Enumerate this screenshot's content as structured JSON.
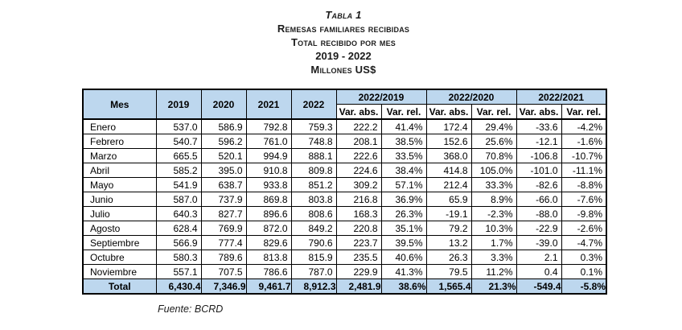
{
  "title": {
    "table_label": "Tabla 1",
    "subtitle1": "Remesas familiares recibidas",
    "subtitle2": "Total recibido por mes",
    "period": "2019 - 2022",
    "units": "Millones US$"
  },
  "colors": {
    "header_fill": "#BDD7EE",
    "border": "#000000"
  },
  "table": {
    "mes_header": "Mes",
    "year_headers": [
      "2019",
      "2020",
      "2021",
      "2022"
    ],
    "comparison_groups": [
      {
        "label": "2022/2019",
        "sub_headers": [
          "Var. abs.",
          "Var. rel."
        ]
      },
      {
        "label": "2022/2020",
        "sub_headers": [
          "Var. abs.",
          "Var. rel."
        ]
      },
      {
        "label": "2022/2021",
        "sub_headers": [
          "Var. abs.",
          "Var. rel."
        ]
      }
    ],
    "rows": [
      {
        "mes": "Enero",
        "values": [
          "537.0",
          "586.9",
          "792.8",
          "759.3",
          "222.2",
          "41.4%",
          "172.4",
          "29.4%",
          "-33.6",
          "-4.2%"
        ]
      },
      {
        "mes": "Febrero",
        "values": [
          "540.7",
          "596.2",
          "761.0",
          "748.8",
          "208.1",
          "38.5%",
          "152.6",
          "25.6%",
          "-12.1",
          "-1.6%"
        ]
      },
      {
        "mes": "Marzo",
        "values": [
          "665.5",
          "520.1",
          "994.9",
          "888.1",
          "222.6",
          "33.5%",
          "368.0",
          "70.8%",
          "-106.8",
          "-10.7%"
        ]
      },
      {
        "mes": "Abril",
        "values": [
          "585.2",
          "395.0",
          "910.8",
          "809.8",
          "224.6",
          "38.4%",
          "414.8",
          "105.0%",
          "-101.0",
          "-11.1%"
        ]
      },
      {
        "mes": "Mayo",
        "values": [
          "541.9",
          "638.7",
          "933.8",
          "851.2",
          "309.2",
          "57.1%",
          "212.4",
          "33.3%",
          "-82.6",
          "-8.8%"
        ]
      },
      {
        "mes": "Junio",
        "values": [
          "587.0",
          "737.9",
          "869.8",
          "803.8",
          "216.8",
          "36.9%",
          "65.9",
          "8.9%",
          "-66.0",
          "-7.6%"
        ]
      },
      {
        "mes": "Julio",
        "values": [
          "640.3",
          "827.7",
          "896.6",
          "808.6",
          "168.3",
          "26.3%",
          "-19.1",
          "-2.3%",
          "-88.0",
          "-9.8%"
        ]
      },
      {
        "mes": "Agosto",
        "values": [
          "628.4",
          "769.9",
          "872.0",
          "849.2",
          "220.8",
          "35.1%",
          "79.2",
          "10.3%",
          "-22.9",
          "-2.6%"
        ]
      },
      {
        "mes": "Septiembre",
        "values": [
          "566.9",
          "777.4",
          "829.6",
          "790.6",
          "223.7",
          "39.5%",
          "13.2",
          "1.7%",
          "-39.0",
          "-4.7%"
        ]
      },
      {
        "mes": "Octubre",
        "values": [
          "580.3",
          "789.6",
          "813.8",
          "815.9",
          "235.5",
          "40.6%",
          "26.3",
          "3.3%",
          "2.1",
          "0.3%"
        ]
      },
      {
        "mes": "Noviembre",
        "values": [
          "557.1",
          "707.5",
          "786.6",
          "787.0",
          "229.9",
          "41.3%",
          "79.5",
          "11.2%",
          "0.4",
          "0.1%"
        ]
      }
    ],
    "total_row": {
      "label": "Total",
      "values": [
        "6,430.4",
        "7,346.9",
        "9,461.7",
        "8,912.3",
        "2,481.9",
        "38.6%",
        "1,565.4",
        "21.3%",
        "-549.4",
        "-5.8%"
      ]
    }
  },
  "footer": {
    "source": "Fuente: BCRD"
  }
}
